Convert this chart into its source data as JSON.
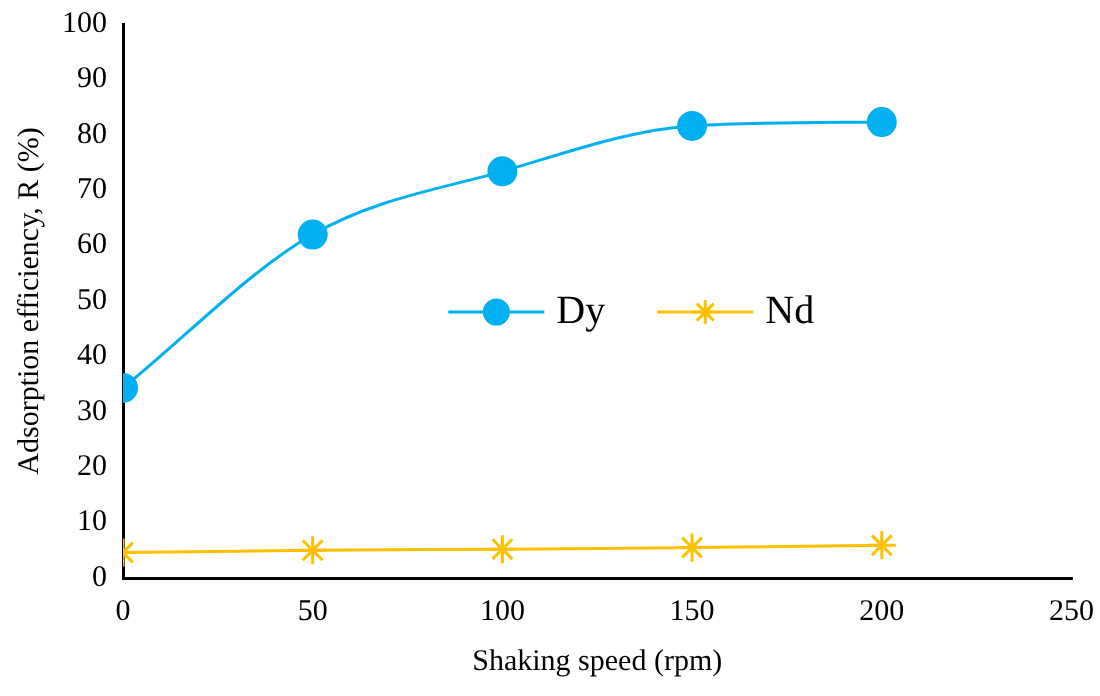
{
  "chart_data": {
    "type": "line",
    "xlabel": "Shaking speed (rpm)",
    "ylabel": "Adsorption efficiency, R (%)",
    "x": [
      0,
      50,
      100,
      150,
      200
    ],
    "series": [
      {
        "name": "Dy",
        "color": "#00b0f0",
        "marker": "circle",
        "values": [
          34.3,
          62,
          73.4,
          81.6,
          82.3
        ]
      },
      {
        "name": "Nd",
        "color": "#ffc000",
        "marker": "cross",
        "values": [
          4.6,
          5,
          5.2,
          5.5,
          5.9
        ]
      }
    ],
    "xlim": [
      0,
      250
    ],
    "xticks": [
      0,
      50,
      100,
      150,
      200,
      250
    ],
    "ylim": [
      0,
      100
    ],
    "yticks": [
      0,
      10,
      20,
      30,
      40,
      50,
      60,
      70,
      80,
      90,
      100
    ],
    "grid": false,
    "legend": "center"
  }
}
